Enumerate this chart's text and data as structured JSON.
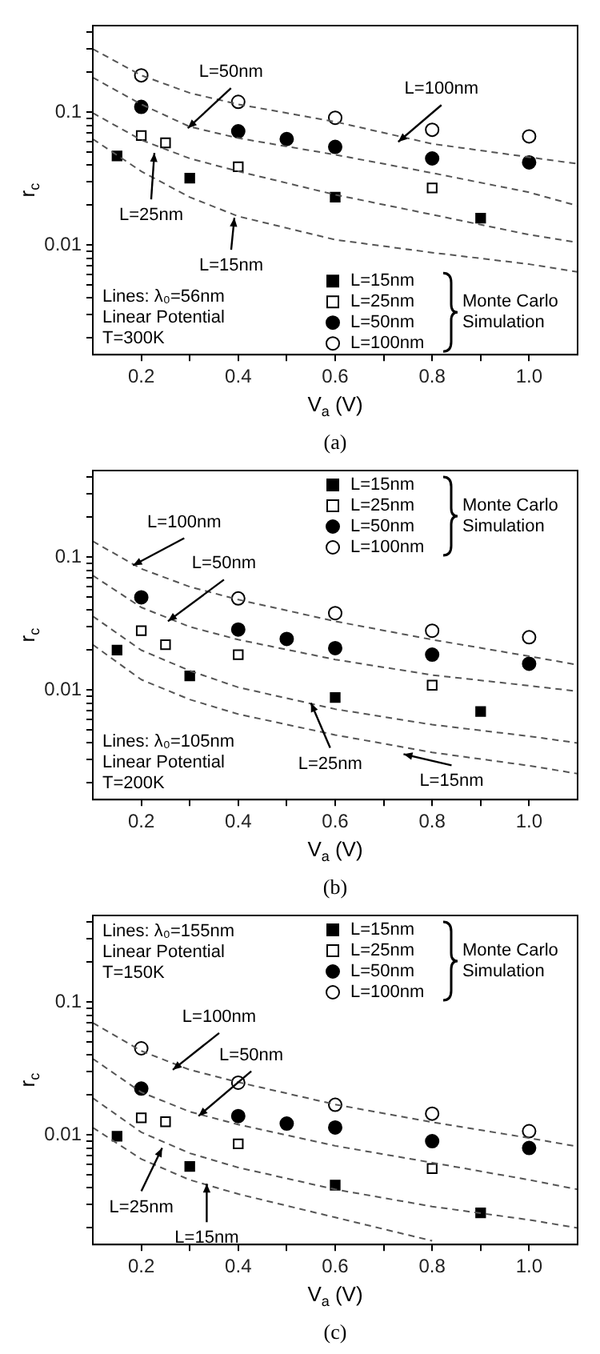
{
  "chart_data": [
    {
      "type": "scatter",
      "xlabel": "V$_{a}$ (V)",
      "ylabel": "r$_{c}$",
      "xlim": [
        0.1,
        1.1
      ],
      "ylim": [
        0.0015,
        0.45
      ],
      "log": "y",
      "legend": "bottom right",
      "legend_title": "Monte Carlo Simulation",
      "xticks": [
        {
          "value": 0.2,
          "label": "0.2"
        },
        {
          "value": 0.3,
          "label": null
        },
        {
          "value": 0.4,
          "label": "0.4"
        },
        {
          "value": 0.5,
          "label": null
        },
        {
          "value": 0.6,
          "label": "0.6"
        },
        {
          "value": 0.7,
          "label": null
        },
        {
          "value": 0.8,
          "label": "0.8"
        },
        {
          "value": 0.9,
          "label": null
        },
        {
          "value": 1,
          "label": "1.0"
        }
      ],
      "yticks": [
        {
          "value": 0.002,
          "label": null
        },
        {
          "value": 0.003,
          "label": null
        },
        {
          "value": 0.004,
          "label": null
        },
        {
          "value": 0.005,
          "label": null
        },
        {
          "value": 0.006,
          "label": null
        },
        {
          "value": 0.007,
          "label": null
        },
        {
          "value": 0.008,
          "label": null
        },
        {
          "value": 0.009,
          "label": null
        },
        {
          "value": 0.01,
          "label": "0.01"
        },
        {
          "value": 0.02,
          "label": null
        },
        {
          "value": 0.03,
          "label": null
        },
        {
          "value": 0.04,
          "label": null
        },
        {
          "value": 0.05,
          "label": null
        },
        {
          "value": 0.06,
          "label": null
        },
        {
          "value": 0.07,
          "label": null
        },
        {
          "value": 0.08,
          "label": null
        },
        {
          "value": 0.09,
          "label": null
        },
        {
          "value": 0.1,
          "label": "0.1"
        },
        {
          "value": 0.2,
          "label": null
        },
        {
          "value": 0.3,
          "label": null
        },
        {
          "value": 0.4,
          "label": null
        }
      ],
      "annotations": [
        "Lines: λ₀=56nm",
        "Linear Potential",
        "T=300K",
        "(a)",
        {
          "text": "L=50nm",
          "x": 0.296,
          "y": 0.076
        },
        {
          "text": "L=100nm",
          "x": 0.73,
          "y": 0.06
        },
        {
          "text": "L=25nm",
          "x": 0.227,
          "y": 0.0495
        },
        {
          "text": "L=15nm",
          "x": 0.392,
          "y": 0.0161
        }
      ],
      "series": [
        {
          "type": "line",
          "line_style": "dashed",
          "marker": "none",
          "color": "#555555",
          "x": [
            0.1,
            0.2,
            0.3,
            0.4,
            0.6,
            0.8,
            1.0,
            1.1
          ],
          "values": [
            0.3,
            0.19,
            0.14,
            0.115,
            0.085,
            0.058,
            0.046,
            0.041
          ]
        },
        {
          "type": "line",
          "line_style": "dashed",
          "marker": "none",
          "color": "#555555",
          "x": [
            0.1,
            0.2,
            0.3,
            0.4,
            0.6,
            0.8,
            1.0,
            1.1
          ],
          "values": [
            0.183,
            0.115,
            0.078,
            0.064,
            0.048,
            0.035,
            0.025,
            0.0198
          ]
        },
        {
          "type": "line",
          "line_style": "dashed",
          "marker": "none",
          "color": "#555555",
          "x": [
            0.1,
            0.2,
            0.3,
            0.4,
            0.6,
            0.8,
            1.0,
            1.1
          ],
          "values": [
            0.099,
            0.062,
            0.045,
            0.036,
            0.024,
            0.017,
            0.012,
            0.0105
          ]
        },
        {
          "type": "line",
          "line_style": "dashed",
          "marker": "none",
          "color": "#555555",
          "x": [
            0.1,
            0.2,
            0.3,
            0.4,
            0.6,
            0.8,
            1.0,
            1.1
          ],
          "values": [
            0.063,
            0.036,
            0.023,
            0.0165,
            0.011,
            0.0088,
            0.0072,
            0.0063
          ]
        },
        {
          "name": "L=15nm",
          "marker": "square",
          "color": "#000000",
          "x": [
            0.15,
            0.3,
            0.6,
            0.9
          ],
          "values": [
            0.047,
            0.032,
            0.023,
            0.016
          ]
        },
        {
          "name": "L=25nm",
          "marker": "square",
          "color": "#ffffff",
          "x": [
            0.2,
            0.25,
            0.4,
            0.8
          ],
          "values": [
            0.067,
            0.059,
            0.039,
            0.027
          ]
        },
        {
          "name": "L=50nm",
          "marker": "circle",
          "color": "#000000",
          "x": [
            0.2,
            0.4,
            0.5,
            0.6,
            0.8,
            1.0
          ],
          "values": [
            0.11,
            0.072,
            0.063,
            0.055,
            0.045,
            0.042
          ]
        },
        {
          "name": "L=100nm",
          "marker": "circle",
          "color": "#ffffff",
          "x": [
            0.2,
            0.4,
            0.6,
            0.8,
            1.0
          ],
          "values": [
            0.19,
            0.12,
            0.091,
            0.074,
            0.066
          ]
        }
      ]
    },
    {
      "type": "scatter",
      "xlabel": "V$_{a}$ (V)",
      "ylabel": "r$_{c}$",
      "xlim": [
        0.1,
        1.1
      ],
      "ylim": [
        0.0015,
        0.45
      ],
      "log": "y",
      "legend": "top right",
      "legend_title": "Monte Carlo Simulation",
      "xticks": [
        {
          "value": 0.2,
          "label": "0.2"
        },
        {
          "value": 0.3,
          "label": null
        },
        {
          "value": 0.4,
          "label": "0.4"
        },
        {
          "value": 0.5,
          "label": null
        },
        {
          "value": 0.6,
          "label": "0.6"
        },
        {
          "value": 0.7,
          "label": null
        },
        {
          "value": 0.8,
          "label": "0.8"
        },
        {
          "value": 0.9,
          "label": null
        },
        {
          "value": 1,
          "label": "1.0"
        }
      ],
      "yticks": [
        {
          "value": 0.002,
          "label": null
        },
        {
          "value": 0.003,
          "label": null
        },
        {
          "value": 0.004,
          "label": null
        },
        {
          "value": 0.005,
          "label": null
        },
        {
          "value": 0.006,
          "label": null
        },
        {
          "value": 0.007,
          "label": null
        },
        {
          "value": 0.008,
          "label": null
        },
        {
          "value": 0.009,
          "label": null
        },
        {
          "value": 0.01,
          "label": "0.01"
        },
        {
          "value": 0.02,
          "label": null
        },
        {
          "value": 0.03,
          "label": null
        },
        {
          "value": 0.04,
          "label": null
        },
        {
          "value": 0.05,
          "label": null
        },
        {
          "value": 0.06,
          "label": null
        },
        {
          "value": 0.07,
          "label": null
        },
        {
          "value": 0.08,
          "label": null
        },
        {
          "value": 0.09,
          "label": null
        },
        {
          "value": 0.1,
          "label": "0.1"
        },
        {
          "value": 0.2,
          "label": null
        },
        {
          "value": 0.3,
          "label": null
        },
        {
          "value": 0.4,
          "label": null
        }
      ],
      "annotations": [
        "Lines: λ₀=105nm",
        "Linear Potential",
        "T=200K",
        "(b)",
        {
          "text": "L=100nm",
          "x": 0.183,
          "y": 0.087
        },
        {
          "text": "L=50nm",
          "x": 0.255,
          "y": 0.033
        },
        {
          "text": "L=25nm",
          "x": 0.55,
          "y": 0.008
        },
        {
          "text": "L=15nm",
          "x": 0.741,
          "y": 0.0033
        }
      ],
      "series": [
        {
          "type": "line",
          "line_style": "dashed",
          "marker": "none",
          "color": "#555555",
          "x": [
            0.1,
            0.2,
            0.3,
            0.4,
            0.6,
            0.8,
            1.0,
            1.1
          ],
          "values": [
            0.132,
            0.082,
            0.06,
            0.048,
            0.033,
            0.024,
            0.018,
            0.0155
          ]
        },
        {
          "type": "line",
          "line_style": "dashed",
          "marker": "none",
          "color": "#555555",
          "x": [
            0.1,
            0.2,
            0.3,
            0.4,
            0.6,
            0.8,
            1.0,
            1.1
          ],
          "values": [
            0.073,
            0.042,
            0.03,
            0.024,
            0.017,
            0.013,
            0.0108,
            0.0098
          ]
        },
        {
          "type": "line",
          "line_style": "dashed",
          "marker": "none",
          "color": "#555555",
          "x": [
            0.1,
            0.2,
            0.3,
            0.4,
            0.6,
            0.8,
            1.0,
            1.1
          ],
          "values": [
            0.036,
            0.02,
            0.014,
            0.0105,
            0.0072,
            0.0055,
            0.0045,
            0.004
          ]
        },
        {
          "type": "line",
          "line_style": "dashed",
          "marker": "none",
          "color": "#555555",
          "x": [
            0.1,
            0.2,
            0.3,
            0.4,
            0.6,
            0.8,
            1.0,
            1.1
          ],
          "values": [
            0.022,
            0.012,
            0.0085,
            0.0066,
            0.0046,
            0.0034,
            0.0027,
            0.00235
          ]
        },
        {
          "name": "L=15nm",
          "marker": "square",
          "color": "#000000",
          "x": [
            0.15,
            0.3,
            0.6,
            0.9
          ],
          "values": [
            0.02,
            0.0128,
            0.0088,
            0.0069
          ]
        },
        {
          "name": "L=25nm",
          "marker": "square",
          "color": "#ffffff",
          "x": [
            0.2,
            0.25,
            0.4,
            0.8
          ],
          "values": [
            0.028,
            0.022,
            0.0185,
            0.0109
          ]
        },
        {
          "name": "L=50nm",
          "marker": "circle",
          "color": "#000000",
          "x": [
            0.2,
            0.4,
            0.5,
            0.6,
            0.8,
            1.0
          ],
          "values": [
            0.05,
            0.0286,
            0.0243,
            0.0207,
            0.0185,
            0.0158
          ]
        },
        {
          "name": "L=100nm",
          "marker": "circle",
          "color": "#ffffff",
          "x": [
            0.4,
            0.6,
            0.8,
            1.0
          ],
          "values": [
            0.049,
            0.038,
            0.028,
            0.025
          ]
        }
      ]
    },
    {
      "type": "scatter",
      "xlabel": "V$_{a}$ (V)",
      "ylabel": "r$_{c}$",
      "xlim": [
        0.1,
        1.1
      ],
      "ylim": [
        0.0015,
        0.45
      ],
      "log": "y",
      "legend": "top right",
      "legend_title": "Monte Carlo Simulation",
      "xticks": [
        {
          "value": 0.2,
          "label": "0.2"
        },
        {
          "value": 0.3,
          "label": null
        },
        {
          "value": 0.4,
          "label": "0.4"
        },
        {
          "value": 0.5,
          "label": null
        },
        {
          "value": 0.6,
          "label": "0.6"
        },
        {
          "value": 0.7,
          "label": null
        },
        {
          "value": 0.8,
          "label": "0.8"
        },
        {
          "value": 0.9,
          "label": null
        },
        {
          "value": 1,
          "label": "1.0"
        }
      ],
      "yticks": [
        {
          "value": 0.002,
          "label": null
        },
        {
          "value": 0.003,
          "label": null
        },
        {
          "value": 0.004,
          "label": null
        },
        {
          "value": 0.005,
          "label": null
        },
        {
          "value": 0.006,
          "label": null
        },
        {
          "value": 0.007,
          "label": null
        },
        {
          "value": 0.008,
          "label": null
        },
        {
          "value": 0.009,
          "label": null
        },
        {
          "value": 0.01,
          "label": "0.01"
        },
        {
          "value": 0.02,
          "label": null
        },
        {
          "value": 0.03,
          "label": null
        },
        {
          "value": 0.04,
          "label": null
        },
        {
          "value": 0.05,
          "label": null
        },
        {
          "value": 0.06,
          "label": null
        },
        {
          "value": 0.07,
          "label": null
        },
        {
          "value": 0.08,
          "label": null
        },
        {
          "value": 0.09,
          "label": null
        },
        {
          "value": 0.1,
          "label": "0.1"
        },
        {
          "value": 0.2,
          "label": null
        },
        {
          "value": 0.3,
          "label": null
        },
        {
          "value": 0.4,
          "label": null
        }
      ],
      "annotations": [
        "Lines: λ₀=155nm",
        "Linear Potential",
        "T=150K",
        "(c)",
        {
          "text": "L=100nm",
          "x": 0.265,
          "y": 0.031
        },
        {
          "text": "L=50nm",
          "x": 0.318,
          "y": 0.0139
        },
        {
          "text": "L=25nm",
          "x": 0.243,
          "y": 0.008
        },
        {
          "text": "L=15nm",
          "x": 0.335,
          "y": 0.0043
        }
      ],
      "series": [
        {
          "type": "line",
          "line_style": "dashed",
          "marker": "none",
          "color": "#555555",
          "x": [
            0.1,
            0.2,
            0.3,
            0.4,
            0.6,
            0.8,
            1.0,
            1.1
          ],
          "values": [
            0.07,
            0.043,
            0.031,
            0.025,
            0.017,
            0.0125,
            0.0095,
            0.0082
          ]
        },
        {
          "type": "line",
          "line_style": "dashed",
          "marker": "none",
          "color": "#555555",
          "x": [
            0.1,
            0.2,
            0.3,
            0.4,
            0.6,
            0.8,
            1.0,
            1.1
          ],
          "values": [
            0.0376,
            0.021,
            0.015,
            0.012,
            0.0083,
            0.0062,
            0.0046,
            0.0039
          ]
        },
        {
          "type": "line",
          "line_style": "dashed",
          "marker": "none",
          "color": "#555555",
          "x": [
            0.1,
            0.2,
            0.3,
            0.4,
            0.6,
            0.8,
            1.0,
            1.1
          ],
          "values": [
            0.019,
            0.0105,
            0.0073,
            0.0057,
            0.0039,
            0.0029,
            0.0023,
            0.002
          ]
        },
        {
          "type": "line",
          "line_style": "dashed",
          "marker": "none",
          "color": "#555555",
          "x": [
            0.1,
            0.2,
            0.3,
            0.4,
            0.6,
            0.8
          ],
          "values": [
            0.0114,
            0.0066,
            0.0046,
            0.0036,
            0.0024,
            0.0016
          ]
        },
        {
          "name": "L=15nm",
          "marker": "square",
          "color": "#000000",
          "x": [
            0.15,
            0.3,
            0.6,
            0.9
          ],
          "values": [
            0.0098,
            0.0058,
            0.0042,
            0.0026
          ]
        },
        {
          "name": "L=25nm",
          "marker": "square",
          "color": "#ffffff",
          "x": [
            0.2,
            0.25,
            0.4,
            0.8
          ],
          "values": [
            0.0135,
            0.0126,
            0.0086,
            0.0056
          ]
        },
        {
          "name": "L=50nm",
          "marker": "circle",
          "color": "#000000",
          "x": [
            0.2,
            0.4,
            0.5,
            0.6,
            0.8,
            1.0
          ],
          "values": [
            0.0224,
            0.0139,
            0.0122,
            0.0114,
            0.009,
            0.008
          ]
        },
        {
          "name": "L=100nm",
          "marker": "circle",
          "color": "#ffffff",
          "x": [
            0.2,
            0.4,
            0.6,
            0.8,
            1.0
          ],
          "values": [
            0.045,
            0.0248,
            0.0169,
            0.0145,
            0.0107
          ]
        }
      ]
    }
  ]
}
